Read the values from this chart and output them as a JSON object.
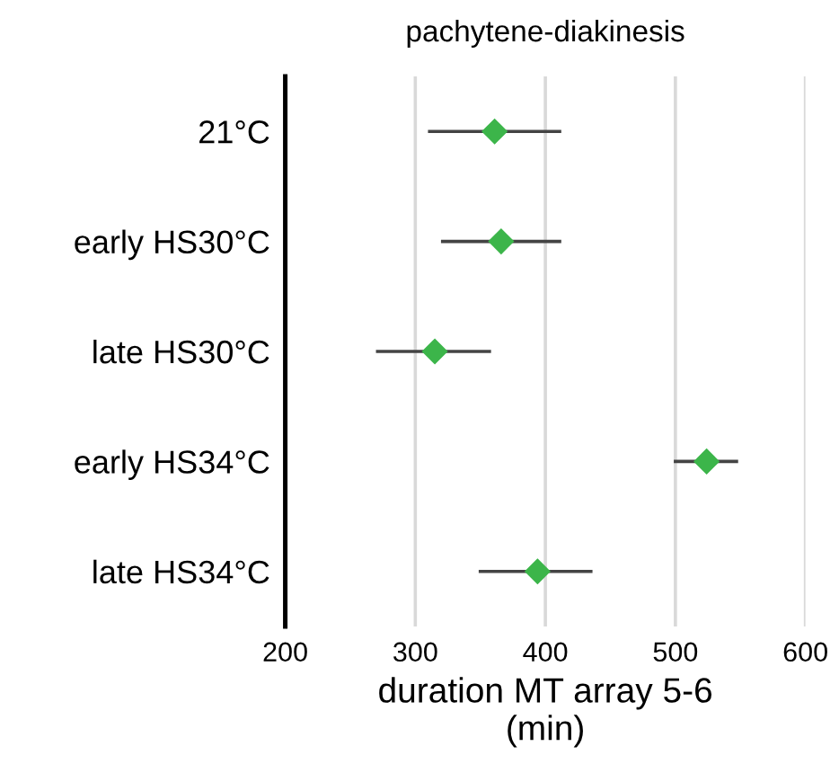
{
  "chart_data": {
    "type": "scatter",
    "orientation": "horizontal",
    "title": "pachytene-diakinesis",
    "xlabel": "duration MT array 5-6\n(min)",
    "categories": [
      "21°C",
      "early HS30°C",
      "late HS30°C",
      "early HS34°C",
      "late HS34°C"
    ],
    "values": [
      361,
      366,
      315,
      524,
      394
    ],
    "errors": [
      [
        311,
        411
      ],
      [
        321,
        411
      ],
      [
        271,
        357
      ],
      [
        500,
        547
      ],
      [
        350,
        435
      ]
    ],
    "color": "#3cb54a",
    "marker": "diamond",
    "xlim": [
      200,
      600
    ],
    "xticks": [
      200,
      300,
      400,
      500,
      600
    ],
    "grid": "x"
  }
}
